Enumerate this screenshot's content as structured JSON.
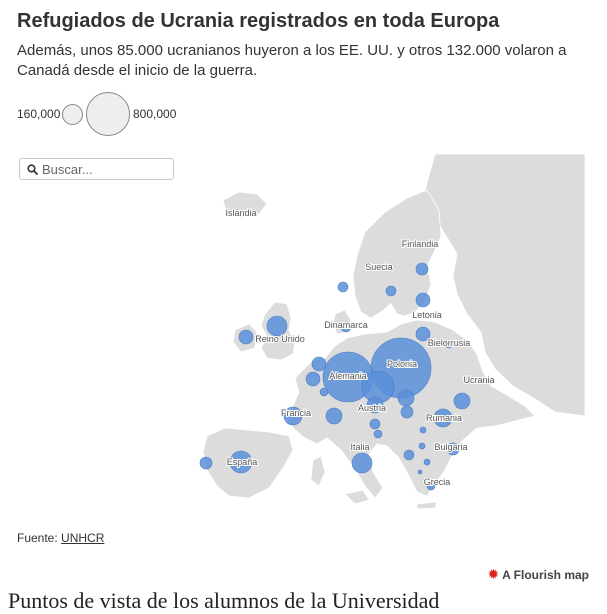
{
  "title": "Refugiados de Ucrania registrados en toda Europa",
  "subtitle": "Además, unos 85.000 ucranianos huyeron a los EE. UU. y otros 132.000 volaron a Canadá desde el inicio de la guerra.",
  "legend": {
    "small_label": "160,000",
    "big_label": "800,000",
    "small_value": 160000,
    "big_value": 800000
  },
  "search": {
    "placeholder": "Buscar..."
  },
  "source": {
    "prefix": "Fuente: ",
    "link": "UNHCR"
  },
  "credit": {
    "text": "A Flourish map"
  },
  "below_text": "Puntos de vista de los alumnos de la Universidad",
  "colors": {
    "bubble": "#5b8fd9",
    "bubble_stroke": "#4a7cc4",
    "land": "#dcdcdc",
    "water": "#ffffff",
    "label": "#555555"
  },
  "countries": [
    {
      "name": "Islandia"
    },
    {
      "name": "Finlandia"
    },
    {
      "name": "Suecia"
    },
    {
      "name": "Letonia"
    },
    {
      "name": "Dinamarca"
    },
    {
      "name": "Bielorrusia"
    },
    {
      "name": "Reino Unido"
    },
    {
      "name": "Polonia"
    },
    {
      "name": "Alemania"
    },
    {
      "name": "Ucrania"
    },
    {
      "name": "Austria"
    },
    {
      "name": "Francia"
    },
    {
      "name": "Rumania"
    },
    {
      "name": "Bulgaria"
    },
    {
      "name": "Italia"
    },
    {
      "name": "España"
    },
    {
      "name": "Grecia"
    }
  ]
}
